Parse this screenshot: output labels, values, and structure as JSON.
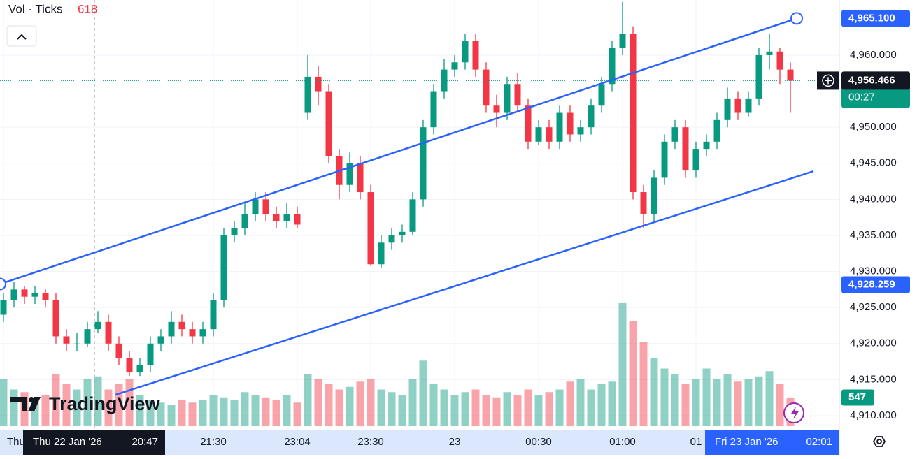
{
  "header": {
    "indicator": "Vol · Ticks",
    "volume": 618,
    "branding": "TradingView"
  },
  "chart_data": {
    "type": "candlestick",
    "categories": [
      "Thu",
      null,
      null,
      null,
      null,
      null,
      null,
      null,
      null,
      null,
      null,
      null,
      null,
      null,
      null,
      null,
      null,
      null,
      null,
      null,
      "21:30",
      null,
      null,
      null,
      null,
      null,
      null,
      null,
      "23:04",
      null,
      null,
      null,
      null,
      null,
      null,
      "23:30",
      null,
      null,
      null,
      null,
      null,
      null,
      null,
      "23",
      null,
      null,
      null,
      null,
      null,
      null,
      null,
      "00:30",
      null,
      null,
      null,
      null,
      null,
      null,
      null,
      "01:00",
      null,
      null,
      null,
      null,
      null,
      null,
      "01",
      null,
      null,
      null,
      null,
      null,
      null,
      null,
      null,
      null
    ],
    "open": [
      4924,
      4926,
      4927.5,
      4926.5,
      4927,
      4926,
      4921,
      4920,
      4920,
      4922,
      4923,
      4920,
      4918,
      4916,
      4917,
      4920,
      4921,
      4923,
      4922,
      4921,
      4922,
      4926,
      4935,
      4936,
      4938,
      4940,
      4938,
      4937,
      4938,
      4952,
      4957,
      4955,
      4946,
      4942,
      4945,
      4941,
      4931,
      4934,
      4935,
      4935.5,
      4940,
      4950,
      4955,
      4958,
      4959,
      4962,
      4958,
      4953,
      4952,
      4956,
      4953,
      4948,
      4950,
      4948,
      4952,
      4949,
      4950,
      4953,
      4956,
      4961,
      4963,
      4941,
      4938,
      4943,
      4948,
      4950,
      4944,
      4947,
      4948,
      4951,
      4954,
      4952,
      4954,
      4960,
      4960.5,
      4958
    ],
    "high": [
      4927,
      4928.5,
      4928,
      4928,
      4927.5,
      4927,
      4922,
      4921.5,
      4923,
      4924.5,
      4924,
      4921,
      4919,
      4918,
      4921,
      4922,
      4924.5,
      4924,
      4923,
      4923,
      4927,
      4936,
      4937,
      4939.5,
      4941,
      4941,
      4939,
      4939.5,
      4939,
      4960,
      4958.5,
      4956,
      4947,
      4946.5,
      4946,
      4942,
      4935,
      4936,
      4936.5,
      4941,
      4951,
      4956,
      4959.5,
      4960,
      4963,
      4963,
      4959,
      4954.5,
      4957,
      4957.5,
      4954,
      4951,
      4951,
      4953,
      4953,
      4951,
      4954,
      4957,
      4962,
      4967.4,
      4964,
      4942,
      4944,
      4949,
      4951,
      4951,
      4948,
      4949,
      4952,
      4955.5,
      4955,
      4955,
      4961,
      4963,
      4961,
      4959
    ],
    "low": [
      4923,
      4925,
      4925.5,
      4925.5,
      4925,
      4920,
      4919,
      4919,
      4919.5,
      4921.5,
      4919,
      4917,
      4915.5,
      4915.5,
      4916,
      4919,
      4920,
      4921,
      4920,
      4920,
      4921,
      4925,
      4934,
      4935,
      4937,
      4937,
      4936,
      4936,
      4936,
      4951,
      4953,
      4945,
      4940,
      4941,
      4940,
      4930.8,
      4930.5,
      4933,
      4934,
      4935,
      4939,
      4949,
      4954,
      4957,
      4958,
      4957,
      4952,
      4950,
      4951,
      4952,
      4947,
      4947.5,
      4947,
      4947,
      4948,
      4948,
      4949,
      4952,
      4955,
      4960,
      4940,
      4936,
      4937,
      4942,
      4947,
      4943,
      4943,
      4946,
      4947,
      4950,
      4951,
      4951.5,
      4953,
      4958,
      4956,
      4952
    ],
    "close": [
      4926,
      4927.5,
      4926.5,
      4927,
      4926,
      4921,
      4920,
      4920,
      4922,
      4923,
      4920,
      4918,
      4916,
      4917,
      4920,
      4921,
      4923,
      4922,
      4921,
      4922,
      4926,
      4935,
      4936,
      4938,
      4940,
      4938,
      4937,
      4938,
      4936.5,
      4957,
      4955,
      4946,
      4942,
      4945,
      4941,
      4931,
      4934,
      4935,
      4935.5,
      4940,
      4950,
      4955,
      4958,
      4959,
      4962,
      4958,
      4953,
      4952,
      4956,
      4953,
      4948,
      4950,
      4948,
      4952,
      4949,
      4950,
      4953,
      4956,
      4961,
      4963,
      4941,
      4938,
      4943,
      4948,
      4950,
      4944,
      4947,
      4948,
      4951,
      4954,
      4952,
      4954,
      4960,
      4960.5,
      4958,
      4956.466
    ],
    "volume": [
      900,
      700,
      650,
      500,
      600,
      1000,
      800,
      700,
      900,
      950,
      700,
      800,
      900,
      600,
      500,
      450,
      400,
      500,
      450,
      500,
      600,
      550,
      500,
      650,
      600,
      550,
      500,
      600,
      450,
      1000,
      900,
      800,
      700,
      750,
      850,
      900,
      700,
      650,
      600,
      900,
      1250,
      800,
      700,
      600,
      650,
      700,
      600,
      550,
      650,
      600,
      700,
      600,
      650,
      700,
      850,
      900,
      700,
      800,
      850,
      2350,
      2000,
      1600,
      1300,
      1100,
      1000,
      800,
      900,
      1100,
      900,
      1000,
      850,
      900,
      950,
      1050,
      800,
      547
    ],
    "ylim": [
      4908.06,
      4967.65
    ],
    "yticks": [
      {
        "value": 4910,
        "label": "4,910.000"
      },
      {
        "value": 4915,
        "label": "4,915.000"
      },
      {
        "value": 4920,
        "label": "4,920.000"
      },
      {
        "value": 4925,
        "label": "4,925.000"
      },
      {
        "value": 4930,
        "label": "4,930.000"
      },
      {
        "value": 4935,
        "label": "4,935.000"
      },
      {
        "value": 4940,
        "label": "4,940.000"
      },
      {
        "value": 4945,
        "label": "4,945.000"
      },
      {
        "value": 4950,
        "label": "4,950.000"
      },
      {
        "value": 4960,
        "label": "4,960.000"
      }
    ],
    "volume_lim": [
      0,
      2400
    ],
    "up_color": "#089981",
    "down_color": "#f23645",
    "grid": true,
    "channel_color": "#2962ff",
    "channel_upper": [
      {
        "value": 4928.259,
        "label": "4,928.259"
      },
      {
        "value": 4965.1,
        "label": "4,965.100"
      }
    ],
    "channel_lower": [
      4912.9,
      4943.9
    ],
    "last_price": {
      "value": 4956.466,
      "label": "4,956.466"
    },
    "countdown": "00:27",
    "crosshair": {
      "date": "Thu 22 Jan '26",
      "time": "20:47"
    },
    "last_time": {
      "date": "Fri 23 Jan '26",
      "time": "02:01"
    }
  }
}
